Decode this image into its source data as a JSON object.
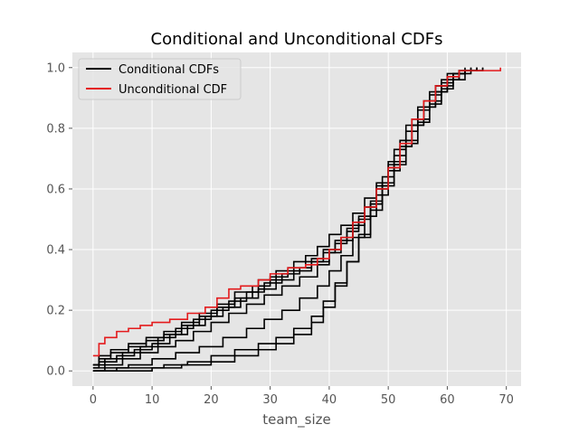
{
  "chart_data": {
    "type": "line",
    "title": "Conditional and Unconditional CDFs",
    "xlabel": "team_size",
    "ylabel": "",
    "xlim": [
      -3.5,
      72.5
    ],
    "ylim": [
      -0.05,
      1.05
    ],
    "xticks": [
      0,
      10,
      20,
      30,
      40,
      50,
      60,
      70
    ],
    "yticks": [
      0.0,
      0.2,
      0.4,
      0.6,
      0.8,
      1.0
    ],
    "xtick_labels": [
      "0",
      "10",
      "20",
      "30",
      "40",
      "50",
      "60",
      "70"
    ],
    "ytick_labels": [
      "0.0",
      "0.2",
      "0.4",
      "0.6",
      "0.8",
      "1.0"
    ],
    "grid": true,
    "background": "#e5e5e5",
    "step": true,
    "legend": {
      "position": "top-left",
      "entries": [
        {
          "label": "Conditional CDFs",
          "color": "#000000"
        },
        {
          "label": "Unconditional CDF",
          "color": "#e41a1c"
        }
      ]
    },
    "series": [
      {
        "color": "#000000",
        "x": [
          0,
          1,
          3,
          6,
          9,
          12,
          15,
          18,
          21,
          24,
          28,
          31,
          34,
          36,
          38,
          40,
          42,
          44,
          46,
          48,
          50,
          52,
          54,
          56,
          58,
          60,
          62,
          65
        ],
        "y": [
          0.01,
          0.05,
          0.07,
          0.09,
          0.11,
          0.13,
          0.16,
          0.19,
          0.22,
          0.26,
          0.3,
          0.33,
          0.36,
          0.38,
          0.41,
          0.45,
          0.48,
          0.52,
          0.57,
          0.62,
          0.69,
          0.76,
          0.83,
          0.89,
          0.94,
          0.97,
          0.99,
          1.0
        ]
      },
      {
        "color": "#000000",
        "x": [
          0,
          1,
          3,
          6,
          9,
          12,
          15,
          18,
          21,
          24,
          27,
          30,
          33,
          36,
          39,
          41,
          43,
          45,
          47,
          49,
          51,
          53,
          55,
          57,
          59,
          61,
          63,
          66
        ],
        "y": [
          0.02,
          0.04,
          0.06,
          0.08,
          0.1,
          0.12,
          0.15,
          0.18,
          0.21,
          0.24,
          0.28,
          0.31,
          0.34,
          0.36,
          0.39,
          0.42,
          0.46,
          0.5,
          0.55,
          0.61,
          0.68,
          0.75,
          0.82,
          0.88,
          0.93,
          0.96,
          0.99,
          1.0
        ]
      },
      {
        "color": "#000000",
        "x": [
          0,
          2,
          5,
          8,
          11,
          14,
          17,
          20,
          23,
          26,
          29,
          32,
          35,
          37,
          39,
          41,
          43,
          45,
          47,
          49,
          51,
          53,
          55,
          57,
          59,
          61,
          64
        ],
        "y": [
          0.02,
          0.04,
          0.06,
          0.08,
          0.11,
          0.14,
          0.17,
          0.2,
          0.23,
          0.26,
          0.29,
          0.32,
          0.34,
          0.37,
          0.4,
          0.43,
          0.47,
          0.51,
          0.56,
          0.62,
          0.69,
          0.76,
          0.83,
          0.89,
          0.94,
          0.98,
          1.0
        ]
      },
      {
        "color": "#000000",
        "x": [
          0,
          1,
          4,
          7,
          10,
          13,
          16,
          19,
          22,
          25,
          28,
          31,
          34,
          37,
          40,
          42,
          44,
          46,
          48,
          50,
          52,
          54,
          56,
          58,
          60,
          62,
          65
        ],
        "y": [
          0.02,
          0.03,
          0.05,
          0.07,
          0.09,
          0.12,
          0.15,
          0.18,
          0.21,
          0.24,
          0.27,
          0.3,
          0.33,
          0.36,
          0.4,
          0.44,
          0.49,
          0.54,
          0.6,
          0.67,
          0.74,
          0.81,
          0.87,
          0.92,
          0.96,
          0.99,
          1.0
        ]
      },
      {
        "color": "#000000",
        "x": [
          0,
          2,
          5,
          8,
          11,
          14,
          17,
          20,
          23,
          26,
          29,
          32,
          35,
          38,
          40,
          42,
          44,
          46,
          48,
          50,
          52,
          54,
          56,
          58,
          60,
          63
        ],
        "y": [
          0.01,
          0.02,
          0.04,
          0.06,
          0.08,
          0.1,
          0.13,
          0.16,
          0.19,
          0.22,
          0.25,
          0.28,
          0.31,
          0.35,
          0.39,
          0.43,
          0.48,
          0.54,
          0.61,
          0.68,
          0.76,
          0.83,
          0.89,
          0.94,
          0.98,
          1.0
        ]
      },
      {
        "color": "#000000",
        "x": [
          0,
          2,
          6,
          10,
          14,
          18,
          22,
          26,
          29,
          32,
          35,
          38,
          40,
          42,
          44,
          46,
          48,
          50,
          52,
          54,
          56,
          58,
          60,
          62,
          64
        ],
        "y": [
          0.0,
          0.01,
          0.02,
          0.04,
          0.06,
          0.08,
          0.11,
          0.14,
          0.17,
          0.2,
          0.24,
          0.28,
          0.33,
          0.38,
          0.44,
          0.51,
          0.58,
          0.66,
          0.74,
          0.81,
          0.87,
          0.92,
          0.96,
          0.99,
          1.0
        ]
      },
      {
        "color": "#000000",
        "x": [
          0,
          4,
          8,
          12,
          16,
          20,
          24,
          28,
          31,
          34,
          37,
          39,
          41,
          43,
          45,
          47,
          49,
          51,
          53,
          55,
          57,
          59,
          61,
          63,
          65
        ],
        "y": [
          0.0,
          0.01,
          0.01,
          0.02,
          0.03,
          0.05,
          0.07,
          0.09,
          0.11,
          0.14,
          0.18,
          0.23,
          0.29,
          0.36,
          0.44,
          0.53,
          0.62,
          0.71,
          0.79,
          0.86,
          0.91,
          0.95,
          0.98,
          0.99,
          1.0
        ]
      },
      {
        "color": "#000000",
        "x": [
          0,
          5,
          10,
          15,
          20,
          24,
          28,
          31,
          34,
          37,
          39,
          41,
          43,
          45,
          47,
          49,
          51,
          53,
          55,
          57,
          59,
          61,
          63,
          66
        ],
        "y": [
          0.0,
          0.0,
          0.01,
          0.02,
          0.03,
          0.05,
          0.07,
          0.09,
          0.12,
          0.16,
          0.21,
          0.28,
          0.36,
          0.45,
          0.55,
          0.64,
          0.73,
          0.81,
          0.87,
          0.92,
          0.96,
          0.98,
          0.99,
          1.0
        ]
      },
      {
        "color": "#e41a1c",
        "x": [
          0,
          1,
          2,
          4,
          6,
          8,
          10,
          13,
          16,
          19,
          21,
          23,
          25,
          28,
          30,
          33,
          36,
          38,
          40,
          42,
          44,
          46,
          48,
          50,
          52,
          54,
          56,
          58,
          60,
          62,
          69
        ],
        "y": [
          0.05,
          0.09,
          0.11,
          0.13,
          0.14,
          0.15,
          0.16,
          0.17,
          0.19,
          0.21,
          0.24,
          0.27,
          0.28,
          0.3,
          0.32,
          0.34,
          0.35,
          0.37,
          0.4,
          0.44,
          0.49,
          0.54,
          0.6,
          0.67,
          0.75,
          0.83,
          0.89,
          0.94,
          0.97,
          0.99,
          1.0
        ]
      }
    ]
  }
}
